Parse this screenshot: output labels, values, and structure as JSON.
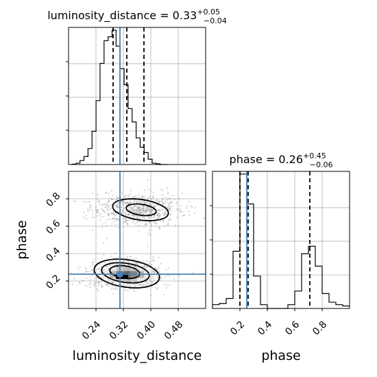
{
  "chart_data": {
    "type": "corner",
    "parameters": [
      "luminosity_distance",
      "phase"
    ],
    "truths": {
      "luminosity_distance": 0.31,
      "phase": 0.25
    },
    "colors": {
      "truth": "#4682b4",
      "hist": "#000000",
      "grid": "#b0b0b0",
      "scatter": "#999999"
    },
    "panels": [
      {
        "name": "luminosity_distance-hist",
        "type": "histogram",
        "title": {
          "base": "luminosity_distance = 0.33",
          "sup": "+0.05",
          "sub": "−0.04"
        },
        "xlim": [
          0.16,
          0.56
        ],
        "xticks": [
          0.24,
          0.32,
          0.4,
          0.48
        ],
        "bins": {
          "start": 0.17,
          "width": 0.0117,
          "counts": [
            0.3,
            1,
            3,
            6,
            12,
            25,
            48,
            76,
            93,
            96,
            101,
            89,
            72,
            60,
            42,
            32,
            20,
            13,
            9,
            4,
            1,
            0.5,
            0,
            0
          ]
        },
        "quantiles": [
          0.29,
          0.33,
          0.38
        ],
        "grid": true
      },
      {
        "name": "phase-hist",
        "type": "histogram",
        "title": {
          "base": "phase = 0.26",
          "sup": "+0.45",
          "sub": "−0.06"
        },
        "xlim": [
          0.0,
          1.0
        ],
        "xticks": [
          0.2,
          0.4,
          0.6,
          0.8
        ],
        "xlabel": "phase",
        "bins": {
          "start": 0.0,
          "width": 0.05,
          "counts": [
            3,
            4,
            8,
            46,
            108,
            84,
            26,
            3,
            0,
            0,
            0,
            3,
            14,
            44,
            50,
            34,
            12,
            5,
            3,
            2
          ]
        },
        "quantiles": [
          0.2,
          0.26,
          0.71
        ],
        "grid": true
      },
      {
        "name": "joint-density",
        "type": "2d-density",
        "xlim": [
          0.16,
          0.56
        ],
        "ylim": [
          0.0,
          1.0
        ],
        "xticks": [
          0.24,
          0.32,
          0.4,
          0.48
        ],
        "yticks": [
          0.2,
          0.4,
          0.6,
          0.8
        ],
        "xlabel": "luminosity_distance",
        "ylabel": "phase",
        "clusters": [
          {
            "cx": 0.33,
            "cy": 0.25,
            "sx": 0.045,
            "sy": 0.045
          },
          {
            "cx": 0.36,
            "cy": 0.72,
            "sx": 0.055,
            "sy": 0.05
          }
        ],
        "grid": true
      }
    ]
  }
}
